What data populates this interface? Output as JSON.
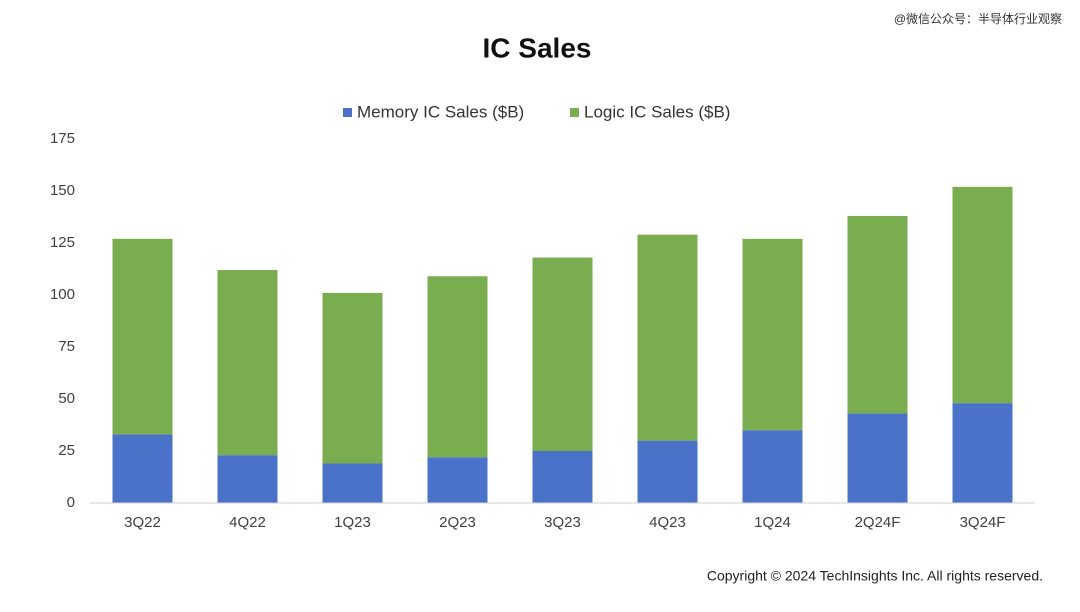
{
  "watermark": "@微信公众号：半导体行业观察",
  "chart_data": {
    "type": "stacked_bar",
    "title": "IC Sales",
    "categories": [
      "3Q22",
      "4Q22",
      "1Q23",
      "2Q23",
      "3Q23",
      "4Q23",
      "1Q24",
      "2Q24F",
      "3Q24F"
    ],
    "series": [
      {
        "name": "Memory IC Sales ($B)",
        "color": "#4a72c9",
        "values": [
          33,
          23,
          19,
          22,
          25,
          30,
          35,
          43,
          48
        ]
      },
      {
        "name": "Logic IC Sales ($B)",
        "color": "#79ad4f",
        "values": [
          94,
          89,
          82,
          87,
          93,
          99,
          92,
          95,
          104
        ]
      }
    ],
    "ylim": [
      0,
      175
    ],
    "yticks": [
      0,
      25,
      50,
      75,
      100,
      125,
      150,
      175
    ],
    "grid": false,
    "legend": "top",
    "footnote": "Copyright © 2024 TechInsights Inc.  All rights reserved."
  }
}
